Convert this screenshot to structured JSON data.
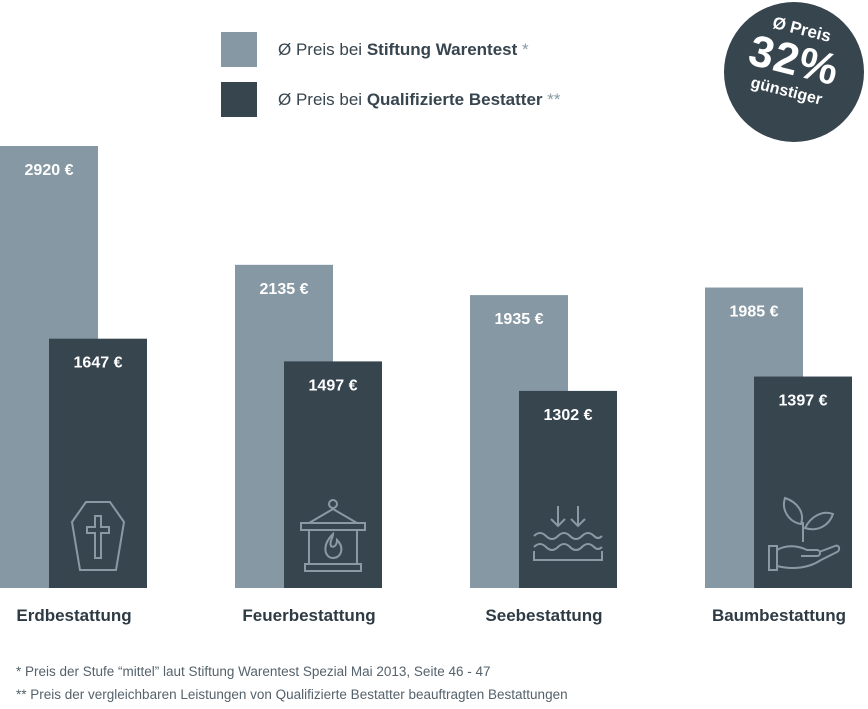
{
  "legend": [
    {
      "prefix": "Ø Preis bei ",
      "name": "Stiftung Warentest",
      "mark": " *",
      "color": "#8698a3"
    },
    {
      "prefix": "Ø Preis bei ",
      "name": "Qualifizierte Bestatter",
      "mark": " **",
      "color": "#37454f"
    }
  ],
  "badge": {
    "top": "Ø Preis",
    "big": "32%",
    "bottom": "günstiger"
  },
  "footnotes": [
    "* Preis der Stufe “mittel” laut Stiftung Warentest Spezial Mai 2013, Seite 46 - 47",
    "** Preis der vergleichbaren Leistungen von Qualifizierte Bestatter beauftragten Bestattungen"
  ],
  "chart_data": {
    "type": "bar",
    "categories": [
      "Erdbestattung",
      "Feuerbestattung",
      "Seebestattung",
      "Baumbestattung"
    ],
    "category_icons": [
      "coffin-icon",
      "lantern-icon",
      "water-icon",
      "plant-hand-icon"
    ],
    "unit": "€",
    "series": [
      {
        "name": "Stiftung Warentest",
        "values": [
          2920,
          2135,
          1935,
          1985
        ],
        "color": "#8698a3"
      },
      {
        "name": "Qualifizierte Bestatter",
        "values": [
          1647,
          1497,
          1302,
          1397
        ],
        "color": "#37454f"
      }
    ],
    "value_labels": [
      [
        "2920 €",
        "2135 €",
        "1935 €",
        "1985 €"
      ],
      [
        "1647 €",
        "1497 €",
        "1302 €",
        "1397 €"
      ]
    ],
    "ylim": [
      0,
      2920
    ],
    "grid": false,
    "legend_position": "top"
  }
}
